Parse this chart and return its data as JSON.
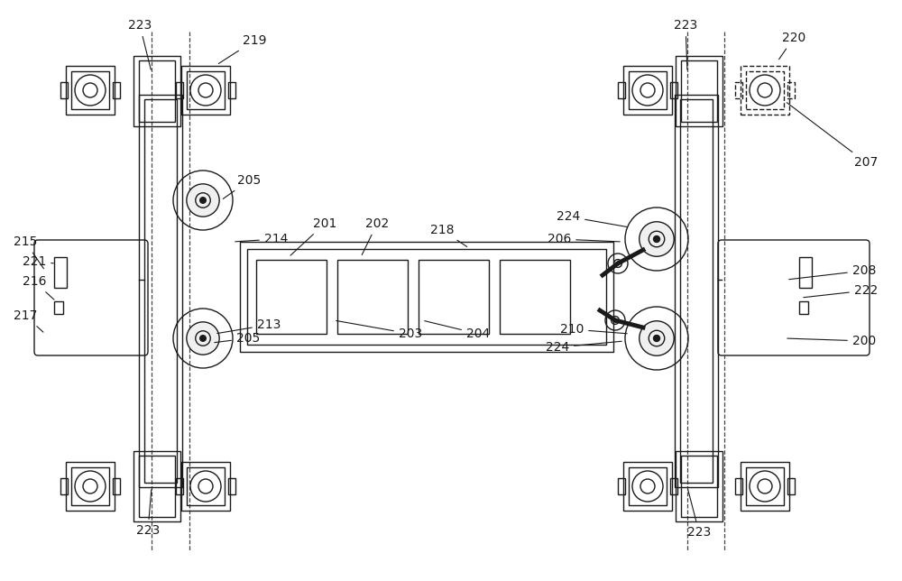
{
  "bg_color": "#ffffff",
  "line_color": "#1a1a1a",
  "dashed_color": "#444444",
  "fig_width": 10.0,
  "fig_height": 6.44
}
